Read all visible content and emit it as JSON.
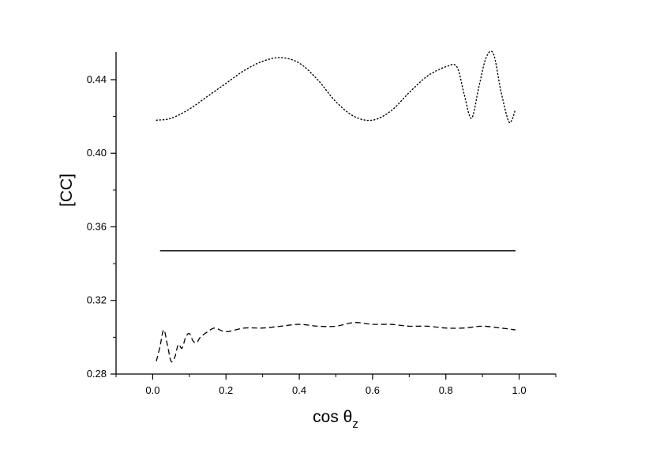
{
  "chart_data": {
    "type": "line",
    "title": "",
    "xlabel": "cos θ",
    "xlabel_subscript": "z",
    "ylabel": "[CC]",
    "xlim": [
      -0.1,
      1.1
    ],
    "ylim": [
      0.28,
      0.455
    ],
    "x_ticks": [
      0.0,
      0.2,
      0.4,
      0.6,
      0.8,
      1.0
    ],
    "x_tick_labels": [
      "0.0",
      "0.2",
      "0.4",
      "0.6",
      "0.8",
      "1.0"
    ],
    "y_ticks": [
      0.28,
      0.32,
      0.36,
      0.4,
      0.44
    ],
    "y_tick_labels": [
      "0.28",
      "0.32",
      "0.36",
      "0.40",
      "0.44"
    ],
    "grid": false,
    "legend": "none",
    "series": [
      {
        "style": "dotted",
        "color": "#000000",
        "x": [
          0.01,
          0.05,
          0.1,
          0.15,
          0.2,
          0.25,
          0.3,
          0.35,
          0.4,
          0.45,
          0.5,
          0.55,
          0.6,
          0.65,
          0.7,
          0.75,
          0.8,
          0.83,
          0.85,
          0.87,
          0.89,
          0.91,
          0.93,
          0.95,
          0.97,
          0.98,
          0.99
        ],
        "y": [
          0.418,
          0.419,
          0.424,
          0.431,
          0.438,
          0.445,
          0.45,
          0.452,
          0.449,
          0.44,
          0.428,
          0.42,
          0.418,
          0.423,
          0.433,
          0.442,
          0.447,
          0.447,
          0.432,
          0.419,
          0.436,
          0.452,
          0.454,
          0.434,
          0.418,
          0.418,
          0.424
        ]
      },
      {
        "style": "solid",
        "color": "#000000",
        "x": [
          0.02,
          0.99
        ],
        "y": [
          0.347,
          0.347
        ]
      },
      {
        "style": "dashed",
        "color": "#000000",
        "x": [
          0.01,
          0.02,
          0.03,
          0.04,
          0.05,
          0.06,
          0.07,
          0.08,
          0.09,
          0.1,
          0.11,
          0.12,
          0.13,
          0.15,
          0.17,
          0.2,
          0.25,
          0.3,
          0.35,
          0.4,
          0.45,
          0.5,
          0.55,
          0.6,
          0.65,
          0.7,
          0.75,
          0.8,
          0.85,
          0.9,
          0.95,
          0.99
        ],
        "y": [
          0.287,
          0.295,
          0.304,
          0.296,
          0.287,
          0.289,
          0.296,
          0.294,
          0.3,
          0.302,
          0.298,
          0.297,
          0.3,
          0.303,
          0.305,
          0.303,
          0.305,
          0.305,
          0.306,
          0.307,
          0.306,
          0.306,
          0.308,
          0.307,
          0.307,
          0.306,
          0.306,
          0.305,
          0.305,
          0.306,
          0.305,
          0.304
        ]
      }
    ]
  }
}
